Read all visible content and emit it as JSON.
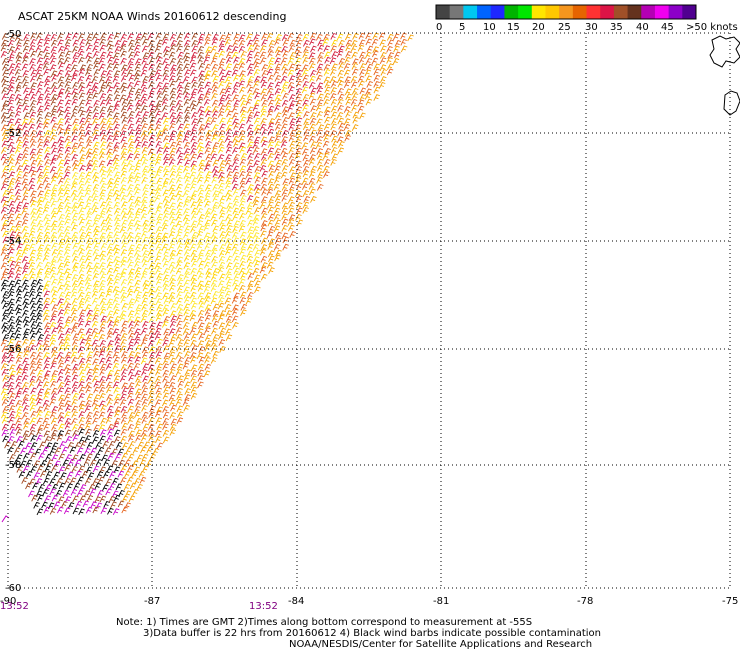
{
  "title": "ASCAT 25KM NOAA Winds 20160612 descending",
  "legend": {
    "colors": [
      "#444444",
      "#777777",
      "#00c8f0",
      "#0064ff",
      "#1e28ff",
      "#00b400",
      "#00e600",
      "#ffe600",
      "#ffc800",
      "#f5961e",
      "#e66400",
      "#ff3232",
      "#dc1446",
      "#a05028",
      "#64321e",
      "#b400b4",
      "#f000f0",
      "#8c00c8",
      "#500090"
    ],
    "labels": [
      "0",
      "5",
      "10",
      "15",
      "20",
      "25",
      "30",
      "35",
      "40",
      "45",
      ">50 knots"
    ]
  },
  "axes": {
    "lon_labels": [
      "-90",
      "-87",
      "-84",
      "-81",
      "-78",
      "-75"
    ],
    "lat_labels": [
      "-50",
      "-52",
      "-54",
      "-56",
      "-58",
      "-60"
    ]
  },
  "times": [
    "13:52",
    "13:52"
  ],
  "notes": [
    "Note: 1) Times are GMT 2)Times along bottom correspond to measurement at -55S",
    "3)Data buffer is 22 hrs from 20160612 4) Black wind barbs indicate possible contamination",
    "NOAA/NESDIS/Center for Satellite Applications and Research"
  ],
  "wind_colors": [
    "#d21e3c",
    "#e6641e",
    "#f5a000",
    "#ffe628",
    "#ffd200",
    "#a0461e",
    "#000000",
    "#c800c8"
  ]
}
